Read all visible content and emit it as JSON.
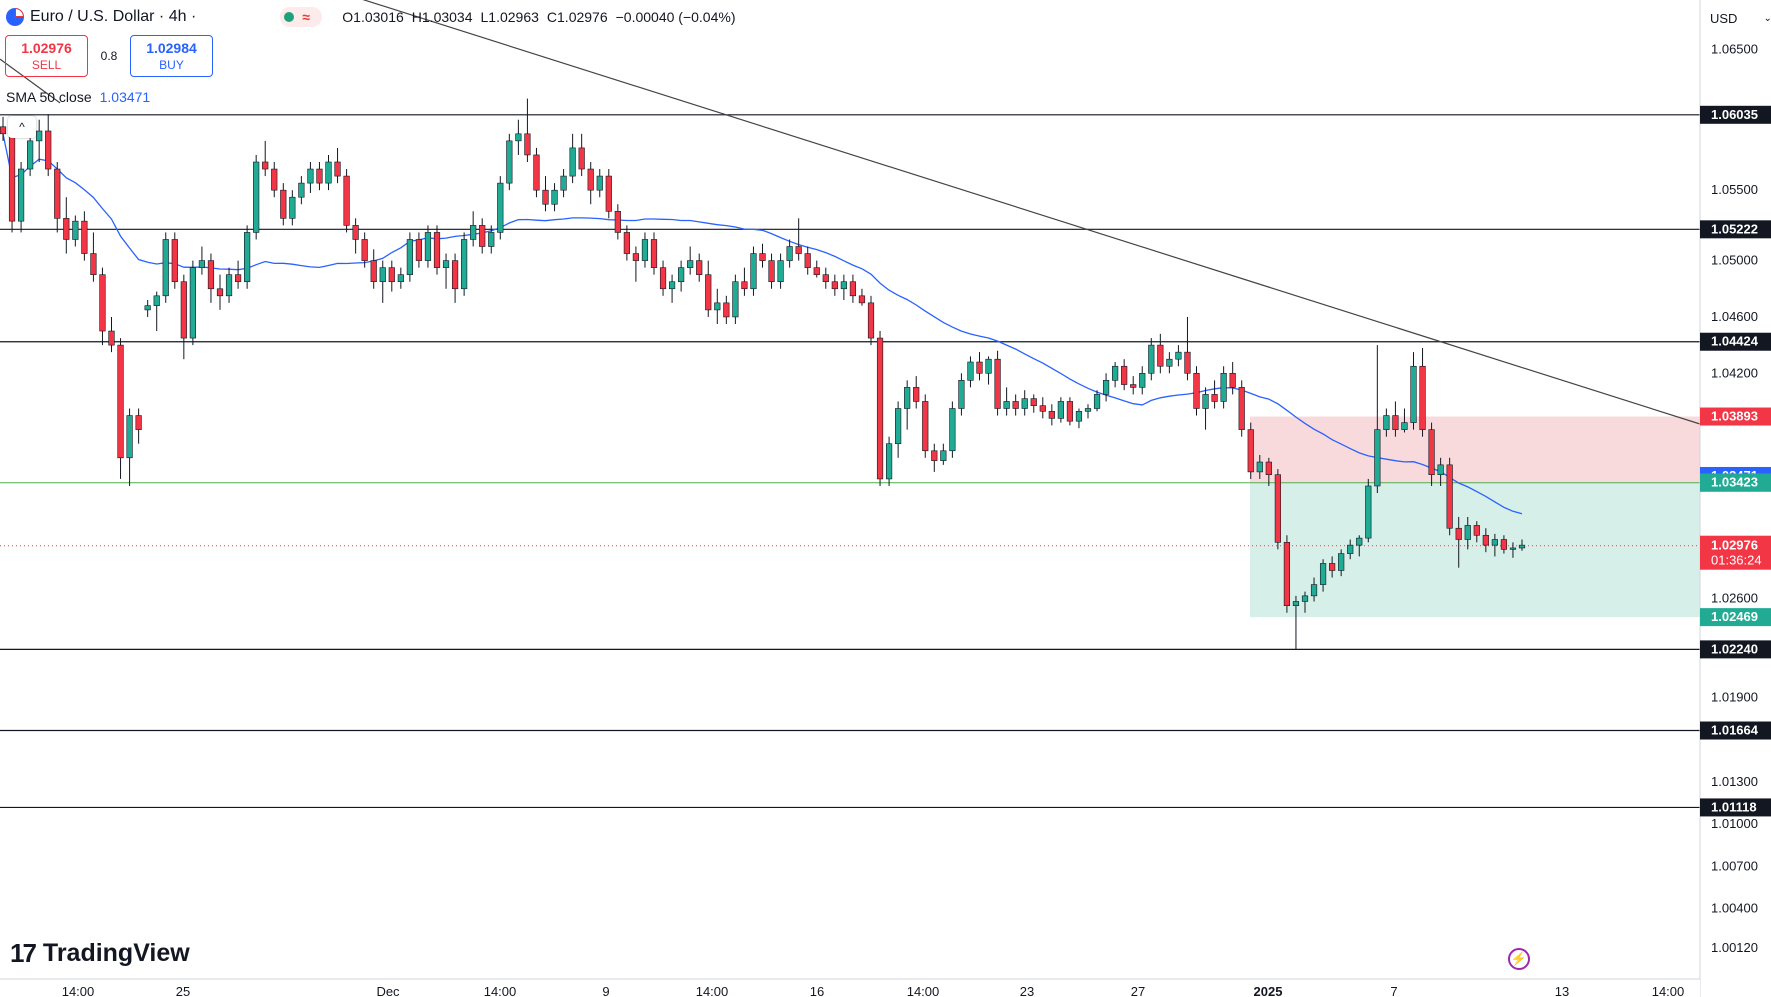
{
  "header": {
    "symbol_title": "Euro / U.S. Dollar · 4h ·",
    "ohlc": {
      "open": "O1.03016",
      "high": "H1.03034",
      "low": "L1.02963",
      "close": "C1.02976",
      "change": "−0.00040 (−0.04%)"
    }
  },
  "trade": {
    "sell_price": "1.02976",
    "sell_label": "SELL",
    "spread": "0.8",
    "buy_price": "1.02984",
    "buy_label": "BUY"
  },
  "indicator": {
    "label": "SMA 50 close",
    "value": "1.03471"
  },
  "currency": {
    "label": "USD"
  },
  "brand": {
    "name": "TradingView"
  },
  "colors": {
    "up": "#22ab94",
    "down": "#f23645",
    "sma": "#2962ff",
    "zone_red": "#f8d3d6",
    "zone_green": "#cfece5",
    "support_green": "#4caf50"
  },
  "chart_data": {
    "type": "candlestick",
    "ylim": [
      0.999,
      1.0685
    ],
    "price_axis_ticks": [
      "1.06500",
      "1.05500",
      "1.05000",
      "1.04600",
      "1.04200",
      "1.02600",
      "1.01900",
      "1.01300",
      "1.01000",
      "1.00700",
      "1.00400",
      "1.00120"
    ],
    "time_axis_ticks": [
      "14:00",
      "25",
      "Dec",
      "14:00",
      "9",
      "14:00",
      "16",
      "14:00",
      "23",
      "27",
      "2025",
      "7",
      "13",
      "14:00"
    ],
    "horizontal_levels": [
      "1.06035",
      "1.05222",
      "1.04424",
      "1.02240",
      "1.01664",
      "1.01118"
    ],
    "support_level": "1.03423",
    "current_price": "1.02976",
    "countdown": "01:36:24",
    "sma_last": "1.03471",
    "position_tool": {
      "entry": "1.03424",
      "stop": "1.03893",
      "target": "1.02469",
      "target_label": "1.03423"
    },
    "trendline": {
      "start": 1.0695,
      "end": 1.0384
    },
    "candles": [
      [
        1.0595,
        1.0602,
        1.0585,
        1.059
      ],
      [
        1.059,
        1.0598,
        1.052,
        1.0528
      ],
      [
        1.0528,
        1.057,
        1.052,
        1.0565
      ],
      [
        1.0565,
        1.059,
        1.056,
        1.0585
      ],
      [
        1.0585,
        1.06,
        1.057,
        1.0592
      ],
      [
        1.0592,
        1.0604,
        1.056,
        1.0565
      ],
      [
        1.0565,
        1.057,
        1.052,
        1.053
      ],
      [
        1.053,
        1.0545,
        1.0505,
        1.0515
      ],
      [
        1.0515,
        1.0532,
        1.051,
        1.0528
      ],
      [
        1.0528,
        1.0535,
        1.05,
        1.0505
      ],
      [
        1.0505,
        1.052,
        1.0485,
        1.049
      ],
      [
        1.049,
        1.0495,
        1.044,
        1.045
      ],
      [
        1.045,
        1.046,
        1.0435,
        1.044
      ],
      [
        1.044,
        1.0445,
        1.0345,
        1.036
      ],
      [
        1.036,
        1.0395,
        1.034,
        1.039
      ],
      [
        1.039,
        1.0395,
        1.037,
        1.038
      ],
      [
        1.0465,
        1.0472,
        1.046,
        1.0468
      ],
      [
        1.0468,
        1.0478,
        1.045,
        1.0475
      ],
      [
        1.0475,
        1.052,
        1.047,
        1.0515
      ],
      [
        1.0515,
        1.052,
        1.048,
        1.0485
      ],
      [
        1.0485,
        1.049,
        1.043,
        1.0445
      ],
      [
        1.0445,
        1.05,
        1.044,
        1.0495
      ],
      [
        1.0495,
        1.051,
        1.049,
        1.05
      ],
      [
        1.05,
        1.0505,
        1.047,
        1.048
      ],
      [
        1.048,
        1.049,
        1.0465,
        1.0475
      ],
      [
        1.0475,
        1.0495,
        1.047,
        1.049
      ],
      [
        1.049,
        1.05,
        1.048,
        1.0485
      ],
      [
        1.0485,
        1.0525,
        1.048,
        1.052
      ],
      [
        1.052,
        1.0575,
        1.0515,
        1.057
      ],
      [
        1.057,
        1.0585,
        1.056,
        1.0565
      ],
      [
        1.0565,
        1.057,
        1.0545,
        1.055
      ],
      [
        1.055,
        1.0555,
        1.0525,
        1.053
      ],
      [
        1.053,
        1.055,
        1.0525,
        1.0545
      ],
      [
        1.0545,
        1.056,
        1.054,
        1.0555
      ],
      [
        1.0555,
        1.057,
        1.0548,
        1.0565
      ],
      [
        1.0565,
        1.057,
        1.055,
        1.0555
      ],
      [
        1.0555,
        1.0575,
        1.055,
        1.057
      ],
      [
        1.057,
        1.058,
        1.0555,
        1.056
      ],
      [
        1.056,
        1.0565,
        1.052,
        1.0525
      ],
      [
        1.0525,
        1.053,
        1.0505,
        1.0515
      ],
      [
        1.0515,
        1.052,
        1.0495,
        1.05
      ],
      [
        1.05,
        1.0508,
        1.048,
        1.0485
      ],
      [
        1.0485,
        1.05,
        1.047,
        1.0495
      ],
      [
        1.0495,
        1.05,
        1.0478,
        1.0485
      ],
      [
        1.0485,
        1.0495,
        1.048,
        1.049
      ],
      [
        1.049,
        1.052,
        1.0485,
        1.0515
      ],
      [
        1.0515,
        1.052,
        1.0495,
        1.05
      ],
      [
        1.05,
        1.0525,
        1.0495,
        1.052
      ],
      [
        1.052,
        1.0525,
        1.049,
        1.0495
      ],
      [
        1.0495,
        1.0505,
        1.048,
        1.05
      ],
      [
        1.05,
        1.0505,
        1.047,
        1.048
      ],
      [
        1.048,
        1.052,
        1.0475,
        1.0515
      ],
      [
        1.0515,
        1.0535,
        1.051,
        1.0525
      ],
      [
        1.0525,
        1.053,
        1.0505,
        1.051
      ],
      [
        1.051,
        1.0525,
        1.0505,
        1.052
      ],
      [
        1.052,
        1.056,
        1.0515,
        1.0555
      ],
      [
        1.0555,
        1.059,
        1.055,
        1.0585
      ],
      [
        1.0585,
        1.06,
        1.0575,
        1.059
      ],
      [
        1.059,
        1.0615,
        1.057,
        1.0575
      ],
      [
        1.0575,
        1.058,
        1.0545,
        1.055
      ],
      [
        1.055,
        1.056,
        1.0535,
        1.054
      ],
      [
        1.054,
        1.0555,
        1.0535,
        1.055
      ],
      [
        1.055,
        1.0565,
        1.0545,
        1.056
      ],
      [
        1.056,
        1.059,
        1.0555,
        1.058
      ],
      [
        1.058,
        1.059,
        1.056,
        1.0565
      ],
      [
        1.0565,
        1.057,
        1.054,
        1.055
      ],
      [
        1.055,
        1.0565,
        1.0545,
        1.056
      ],
      [
        1.056,
        1.0565,
        1.053,
        1.0535
      ],
      [
        1.0535,
        1.054,
        1.0515,
        1.052
      ],
      [
        1.052,
        1.0525,
        1.05,
        1.0505
      ],
      [
        1.0505,
        1.051,
        1.0485,
        1.05
      ],
      [
        1.05,
        1.052,
        1.0495,
        1.0515
      ],
      [
        1.0515,
        1.052,
        1.049,
        1.0495
      ],
      [
        1.0495,
        1.05,
        1.0475,
        1.048
      ],
      [
        1.048,
        1.049,
        1.047,
        1.0485
      ],
      [
        1.0485,
        1.05,
        1.0478,
        1.0495
      ],
      [
        1.0495,
        1.051,
        1.049,
        1.05
      ],
      [
        1.05,
        1.0505,
        1.0485,
        1.049
      ],
      [
        1.049,
        1.05,
        1.046,
        1.0465
      ],
      [
        1.0465,
        1.048,
        1.0455,
        1.047
      ],
      [
        1.047,
        1.0475,
        1.0455,
        1.046
      ],
      [
        1.046,
        1.049,
        1.0455,
        1.0485
      ],
      [
        1.0485,
        1.0495,
        1.0475,
        1.048
      ],
      [
        1.048,
        1.051,
        1.0475,
        1.0505
      ],
      [
        1.0505,
        1.0512,
        1.0495,
        1.05
      ],
      [
        1.05,
        1.0505,
        1.048,
        1.0485
      ],
      [
        1.0485,
        1.0505,
        1.048,
        1.05
      ],
      [
        1.05,
        1.0515,
        1.0495,
        1.051
      ],
      [
        1.051,
        1.053,
        1.05,
        1.0505
      ],
      [
        1.0505,
        1.051,
        1.049,
        1.0495
      ],
      [
        1.0495,
        1.05,
        1.0488,
        1.049
      ],
      [
        1.049,
        1.0495,
        1.048,
        1.0485
      ],
      [
        1.0485,
        1.049,
        1.0475,
        1.048
      ],
      [
        1.048,
        1.049,
        1.0472,
        1.0485
      ],
      [
        1.0485,
        1.049,
        1.047,
        1.0475
      ],
      [
        1.0475,
        1.048,
        1.0468,
        1.047
      ],
      [
        1.047,
        1.0475,
        1.044,
        1.0445
      ],
      [
        1.0445,
        1.045,
        1.034,
        1.0345
      ],
      [
        1.0345,
        1.0375,
        1.034,
        1.037
      ],
      [
        1.037,
        1.04,
        1.036,
        1.0395
      ],
      [
        1.0395,
        1.0415,
        1.038,
        1.041
      ],
      [
        1.041,
        1.0418,
        1.0395,
        1.04
      ],
      [
        1.04,
        1.0405,
        1.036,
        1.0365
      ],
      [
        1.0365,
        1.037,
        1.035,
        1.0358
      ],
      [
        1.0358,
        1.037,
        1.0355,
        1.0365
      ],
      [
        1.0365,
        1.04,
        1.036,
        1.0395
      ],
      [
        1.0395,
        1.042,
        1.039,
        1.0415
      ],
      [
        1.0415,
        1.0432,
        1.041,
        1.0428
      ],
      [
        1.0428,
        1.0435,
        1.0415,
        1.042
      ],
      [
        1.042,
        1.0432,
        1.0412,
        1.043
      ],
      [
        1.043,
        1.0436,
        1.039,
        1.0395
      ],
      [
        1.0395,
        1.041,
        1.039,
        1.04
      ],
      [
        1.04,
        1.0405,
        1.039,
        1.0395
      ],
      [
        1.0395,
        1.0408,
        1.039,
        1.0402
      ],
      [
        1.0402,
        1.0405,
        1.0392,
        1.0397
      ],
      [
        1.0397,
        1.0403,
        1.0388,
        1.0393
      ],
      [
        1.0393,
        1.0398,
        1.0383,
        1.0388
      ],
      [
        1.0388,
        1.0403,
        1.0385,
        1.04
      ],
      [
        1.04,
        1.0403,
        1.0383,
        1.0386
      ],
      [
        1.0386,
        1.0395,
        1.0381,
        1.0393
      ],
      [
        1.0393,
        1.0398,
        1.0388,
        1.0395
      ],
      [
        1.0395,
        1.0408,
        1.0393,
        1.0405
      ],
      [
        1.0405,
        1.042,
        1.04,
        1.0415
      ],
      [
        1.0415,
        1.0428,
        1.041,
        1.0425
      ],
      [
        1.0425,
        1.043,
        1.0408,
        1.0412
      ],
      [
        1.0412,
        1.0418,
        1.0405,
        1.041
      ],
      [
        1.041,
        1.0425,
        1.0405,
        1.042
      ],
      [
        1.042,
        1.0445,
        1.0415,
        1.044
      ],
      [
        1.044,
        1.0448,
        1.042,
        1.0425
      ],
      [
        1.0425,
        1.0435,
        1.042,
        1.043
      ],
      [
        1.043,
        1.044,
        1.0425,
        1.0435
      ],
      [
        1.0435,
        1.046,
        1.0415,
        1.042
      ],
      [
        1.042,
        1.0425,
        1.039,
        1.0395
      ],
      [
        1.0395,
        1.041,
        1.038,
        1.0405
      ],
      [
        1.0405,
        1.0415,
        1.0395,
        1.04
      ],
      [
        1.04,
        1.0425,
        1.0395,
        1.042
      ],
      [
        1.042,
        1.0428,
        1.0405,
        1.041
      ],
      [
        1.041,
        1.0415,
        1.0375,
        1.038
      ],
      [
        1.038,
        1.0385,
        1.0345,
        1.035
      ],
      [
        1.035,
        1.0362,
        1.0345,
        1.0357
      ],
      [
        1.0357,
        1.036,
        1.034,
        1.0348
      ],
      [
        1.0348,
        1.0352,
        1.0295,
        1.03
      ],
      [
        1.03,
        1.0305,
        1.025,
        1.0255
      ],
      [
        1.0255,
        1.0262,
        1.0224,
        1.0258
      ],
      [
        1.0258,
        1.0265,
        1.025,
        1.0262
      ],
      [
        1.0262,
        1.0275,
        1.0258,
        1.027
      ],
      [
        1.027,
        1.0288,
        1.0265,
        1.0285
      ],
      [
        1.0285,
        1.029,
        1.0275,
        1.028
      ],
      [
        1.028,
        1.0295,
        1.0276,
        1.0292
      ],
      [
        1.0292,
        1.0302,
        1.0288,
        1.0298
      ],
      [
        1.0298,
        1.0305,
        1.029,
        1.0303
      ],
      [
        1.0303,
        1.0345,
        1.03,
        1.034
      ],
      [
        1.034,
        1.044,
        1.0335,
        1.038
      ],
      [
        1.038,
        1.0395,
        1.0375,
        1.039
      ],
      [
        1.039,
        1.04,
        1.0375,
        1.038
      ],
      [
        1.038,
        1.0395,
        1.0378,
        1.0385
      ],
      [
        1.0385,
        1.0435,
        1.038,
        1.0425
      ],
      [
        1.0425,
        1.0438,
        1.0375,
        1.038
      ],
      [
        1.038,
        1.0385,
        1.034,
        1.0348
      ],
      [
        1.0348,
        1.036,
        1.034,
        1.0355
      ],
      [
        1.0355,
        1.036,
        1.0305,
        1.031
      ],
      [
        1.031,
        1.0318,
        1.0282,
        1.0302
      ],
      [
        1.0302,
        1.0318,
        1.0295,
        1.0312
      ],
      [
        1.0312,
        1.0315,
        1.03,
        1.0305
      ],
      [
        1.0305,
        1.031,
        1.0293,
        1.0298
      ],
      [
        1.0298,
        1.0306,
        1.029,
        1.0302
      ],
      [
        1.0302,
        1.0305,
        1.0292,
        1.0295
      ],
      [
        1.0295,
        1.03,
        1.0289,
        1.0296
      ],
      [
        1.0296,
        1.0302,
        1.0294,
        1.0298
      ]
    ]
  }
}
